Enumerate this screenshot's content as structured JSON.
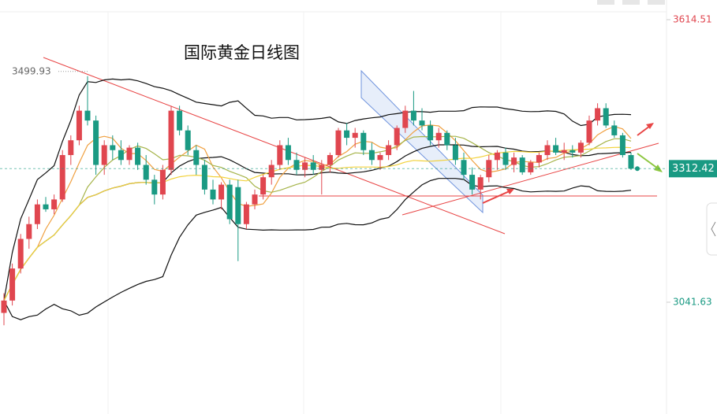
{
  "chart_data": {
    "type": "candlestick",
    "title": "国际黄金日线图",
    "open": [
      3020,
      3045,
      3110,
      3170,
      3200,
      3240,
      3230,
      3250,
      3340,
      3370,
      3430,
      3410,
      3320,
      3360,
      3350,
      3330,
      3355,
      3320,
      3290,
      3260,
      3310,
      3430,
      3390,
      3350,
      3320,
      3270,
      3250,
      3280,
      3275,
      3200,
      3240,
      3260,
      3295,
      3320,
      3360,
      3330,
      3310,
      3325,
      3310,
      3320,
      3340,
      3390,
      3375,
      3385,
      3350,
      3330,
      3340,
      3360,
      3395,
      3430,
      3410,
      3400,
      3370,
      3385,
      3360,
      3330,
      3300,
      3270,
      3295,
      3330,
      3345,
      3320,
      3335,
      3305,
      3325,
      3340,
      3360,
      3345,
      3350,
      3345,
      3365,
      3410,
      3435,
      3400,
      3380,
      3340
    ],
    "high": [
      3060,
      3120,
      3180,
      3215,
      3250,
      3255,
      3260,
      3350,
      3380,
      3440,
      3499.93,
      3420,
      3370,
      3380,
      3370,
      3360,
      3365,
      3340,
      3300,
      3320,
      3440,
      3440,
      3400,
      3360,
      3330,
      3290,
      3285,
      3290,
      3290,
      3245,
      3270,
      3300,
      3330,
      3370,
      3375,
      3345,
      3335,
      3340,
      3330,
      3345,
      3395,
      3405,
      3395,
      3390,
      3365,
      3345,
      3370,
      3400,
      3440,
      3470,
      3435,
      3410,
      3395,
      3390,
      3375,
      3345,
      3315,
      3300,
      3340,
      3350,
      3355,
      3345,
      3340,
      3330,
      3345,
      3370,
      3375,
      3365,
      3360,
      3370,
      3420,
      3445,
      3445,
      3410,
      3385,
      3345
    ],
    "low": [
      2995,
      3035,
      3100,
      3150,
      3190,
      3225,
      3220,
      3245,
      3320,
      3360,
      3400,
      3300,
      3300,
      3330,
      3320,
      3320,
      3310,
      3280,
      3240,
      3250,
      3300,
      3380,
      3340,
      3300,
      3260,
      3240,
      3230,
      3200,
      3125,
      3190,
      3230,
      3250,
      3280,
      3310,
      3320,
      3300,
      3295,
      3300,
      3260,
      3305,
      3335,
      3360,
      3355,
      3340,
      3320,
      3310,
      3330,
      3350,
      3385,
      3400,
      3390,
      3360,
      3355,
      3350,
      3320,
      3290,
      3260,
      3250,
      3285,
      3310,
      3310,
      3305,
      3300,
      3300,
      3315,
      3330,
      3340,
      3330,
      3335,
      3335,
      3360,
      3400,
      3395,
      3375,
      3335,
      3310
    ],
    "close": [
      3045,
      3110,
      3170,
      3200,
      3240,
      3230,
      3250,
      3340,
      3370,
      3430,
      3410,
      3320,
      3360,
      3350,
      3330,
      3355,
      3320,
      3290,
      3260,
      3310,
      3430,
      3390,
      3350,
      3320,
      3270,
      3250,
      3280,
      3210,
      3200,
      3240,
      3260,
      3295,
      3320,
      3360,
      3330,
      3310,
      3325,
      3310,
      3320,
      3340,
      3390,
      3375,
      3385,
      3350,
      3330,
      3340,
      3360,
      3395,
      3430,
      3410,
      3400,
      3370,
      3385,
      3360,
      3330,
      3300,
      3270,
      3295,
      3330,
      3345,
      3320,
      3335,
      3305,
      3325,
      3340,
      3360,
      3345,
      3350,
      3345,
      3365,
      3410,
      3435,
      3400,
      3380,
      3340,
      3312.42
    ],
    "up_color": "#e0464f",
    "down_color": "#1a9a83",
    "ylim": [
      2815,
      3654.4
    ],
    "yticks": [
      3614.51,
      3041.63
    ]
  }
}
